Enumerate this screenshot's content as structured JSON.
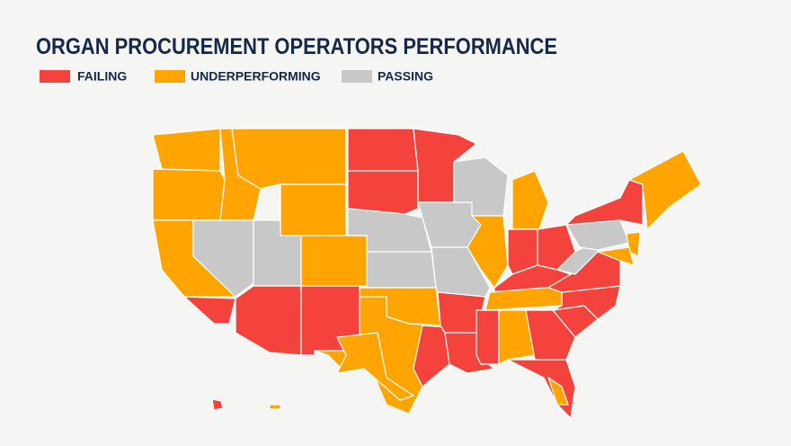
{
  "header": {
    "title": "ORGAN PROCUREMENT OPERATORS PERFORMANCE"
  },
  "legend": [
    {
      "label": "FAILING",
      "color": "#f4433c"
    },
    {
      "label": "UNDERPERFORMING",
      "color": "#ffa400"
    },
    {
      "label": "PASSING",
      "color": "#c8c8c8"
    }
  ]
}
